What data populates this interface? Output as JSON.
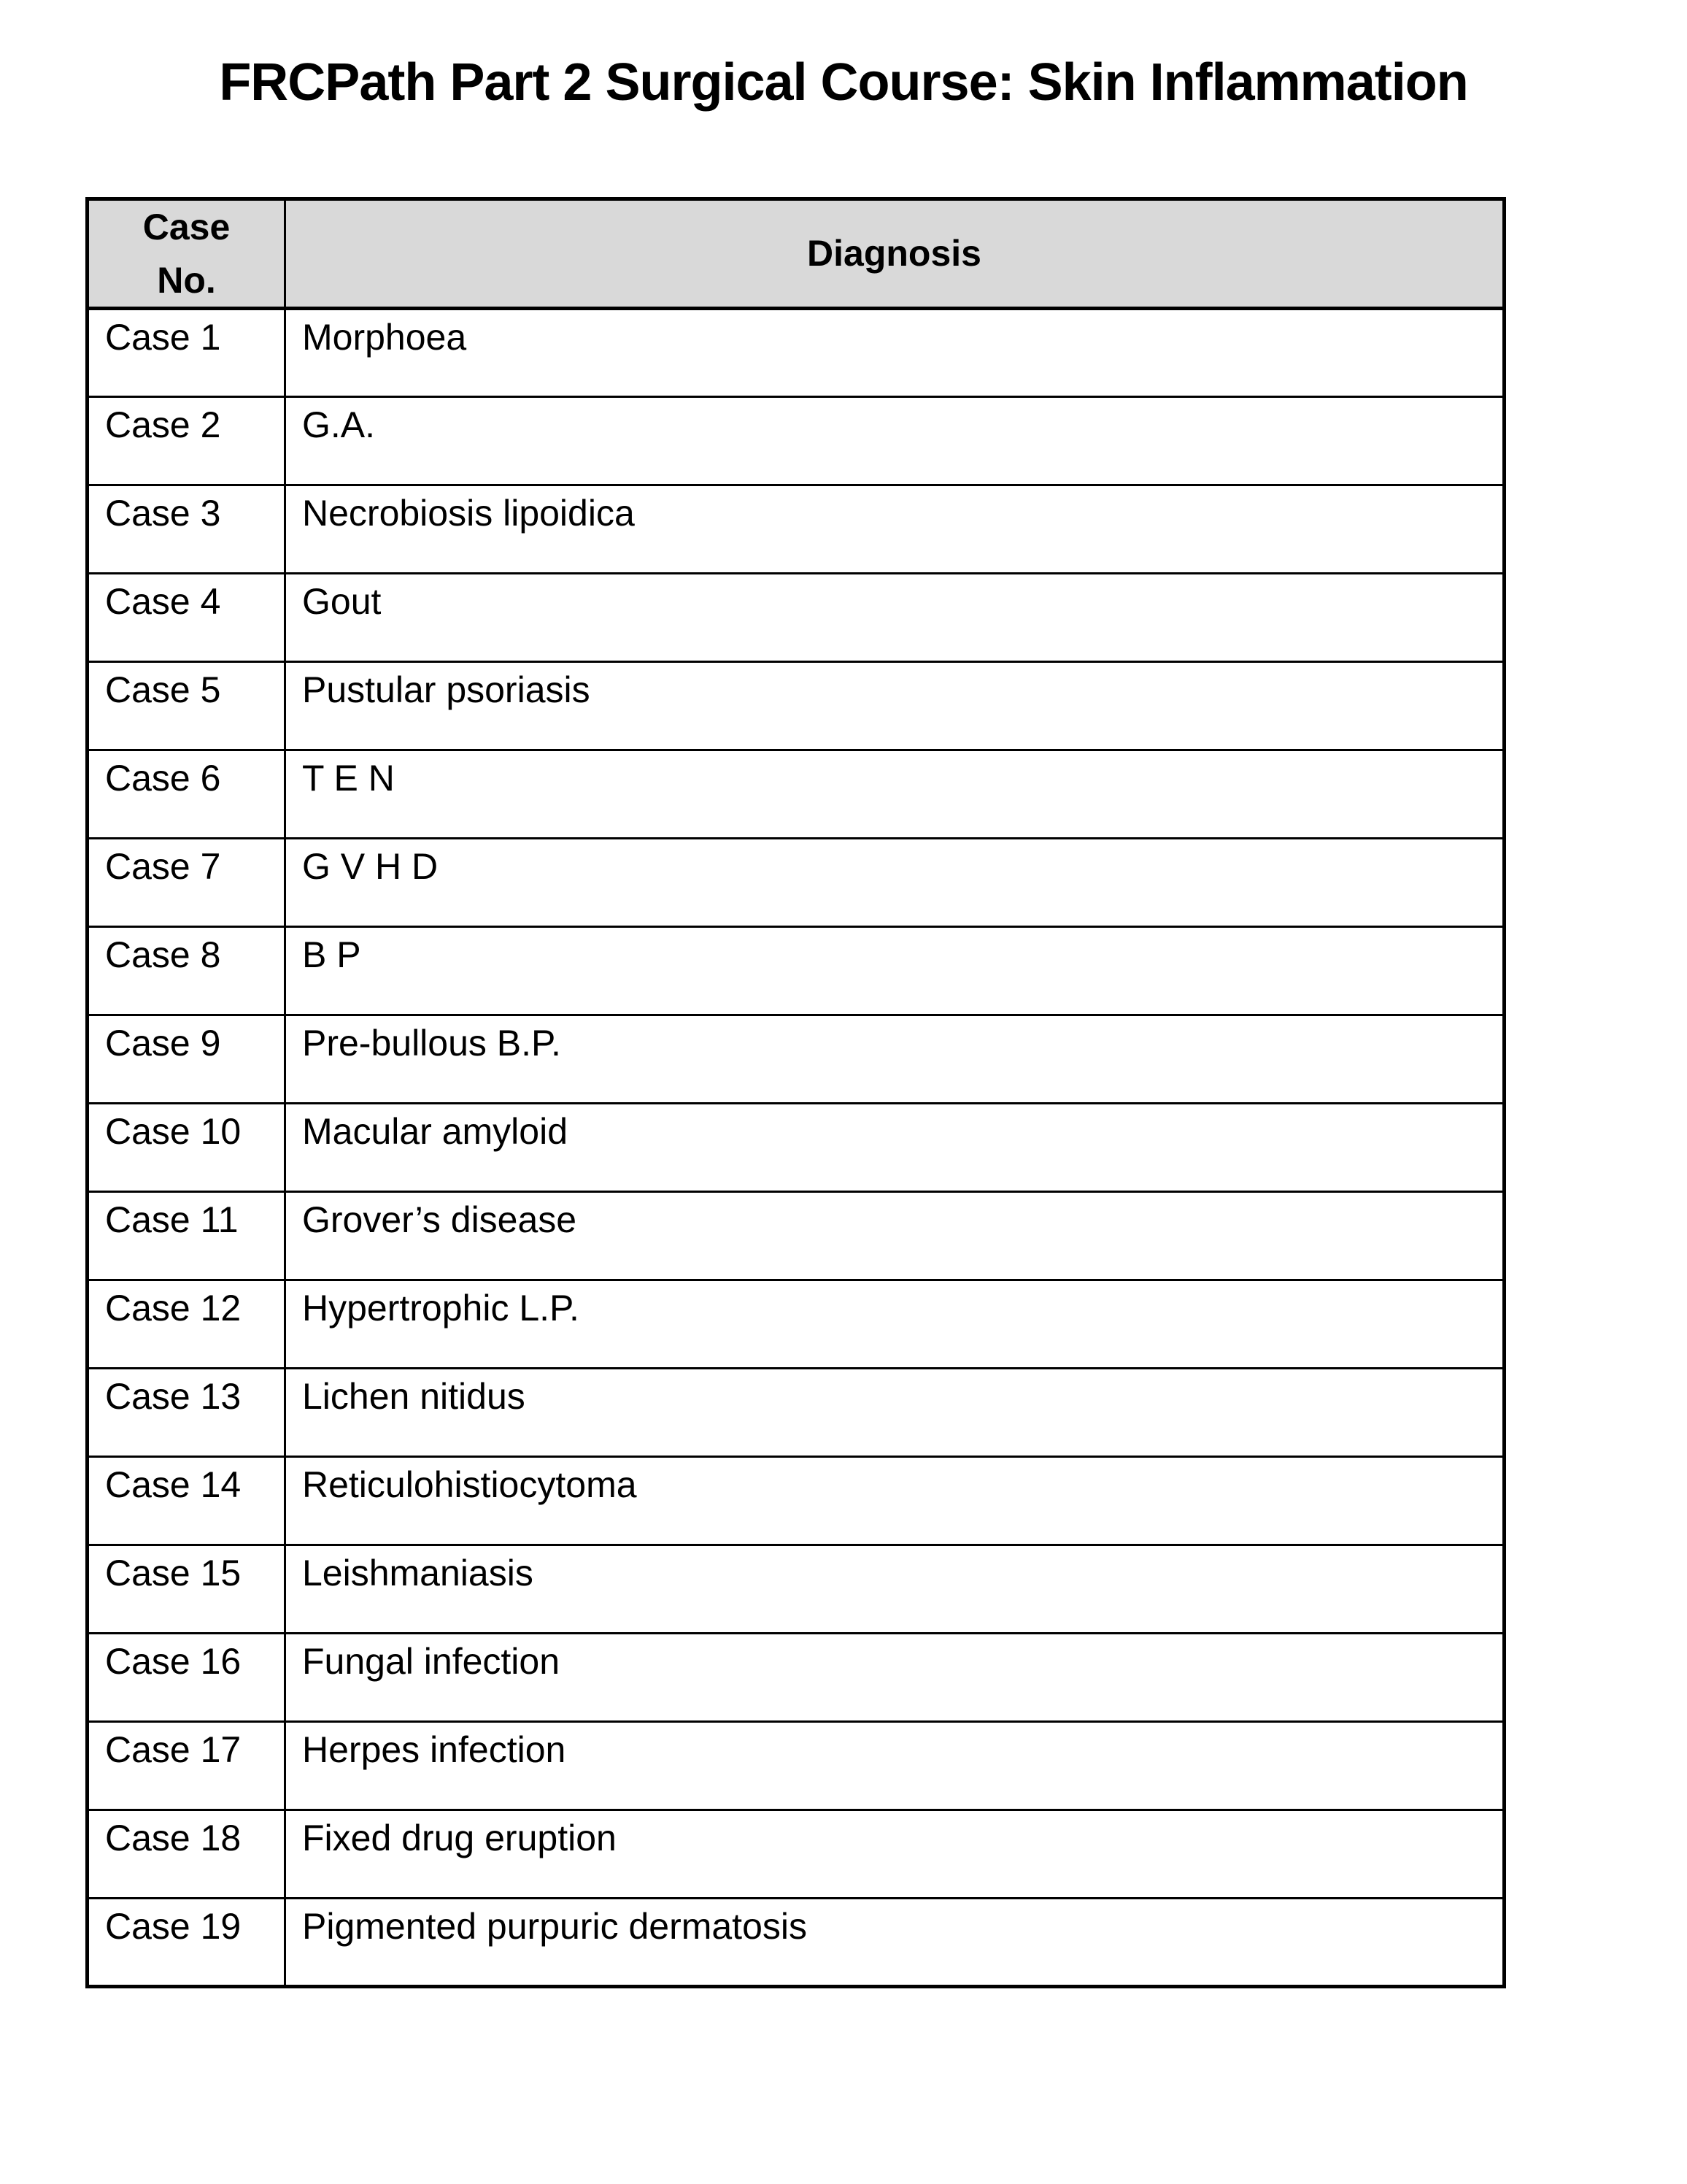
{
  "page": {
    "title": "FRCPath Part 2 Surgical Course: Skin Inflammation"
  },
  "colors": {
    "header_background": "#d9d9d9",
    "border": "#000000",
    "text": "#000000"
  },
  "table": {
    "headers": {
      "case_no": "Case\nNo.",
      "diagnosis": "Diagnosis"
    },
    "rows": [
      {
        "case_no": "Case 1",
        "diagnosis": "Morphoea"
      },
      {
        "case_no": "Case 2",
        "diagnosis": "G.A."
      },
      {
        "case_no": "Case 3",
        "diagnosis": "Necrobiosis lipoidica"
      },
      {
        "case_no": "Case 4",
        "diagnosis": "Gout"
      },
      {
        "case_no": "Case 5",
        "diagnosis": "Pustular psoriasis"
      },
      {
        "case_no": "Case 6",
        "diagnosis": "T E N"
      },
      {
        "case_no": "Case 7",
        "diagnosis": "G V H D"
      },
      {
        "case_no": "Case 8",
        "diagnosis": "B P"
      },
      {
        "case_no": "Case 9",
        "diagnosis": "Pre-bullous B.P."
      },
      {
        "case_no": "Case 10",
        "diagnosis": "Macular amyloid"
      },
      {
        "case_no": "Case 11",
        "diagnosis": "Grover’s disease"
      },
      {
        "case_no": "Case 12",
        "diagnosis": "Hypertrophic L.P."
      },
      {
        "case_no": "Case 13",
        "diagnosis": "Lichen nitidus"
      },
      {
        "case_no": "Case 14",
        "diagnosis": "Reticulohistiocytoma"
      },
      {
        "case_no": "Case 15",
        "diagnosis": "Leishmaniasis"
      },
      {
        "case_no": "Case 16",
        "diagnosis": "Fungal infection"
      },
      {
        "case_no": "Case 17",
        "diagnosis": "Herpes infection"
      },
      {
        "case_no": "Case 18",
        "diagnosis": "Fixed drug eruption"
      },
      {
        "case_no": "Case 19",
        "diagnosis": "Pigmented purpuric dermatosis"
      }
    ]
  }
}
